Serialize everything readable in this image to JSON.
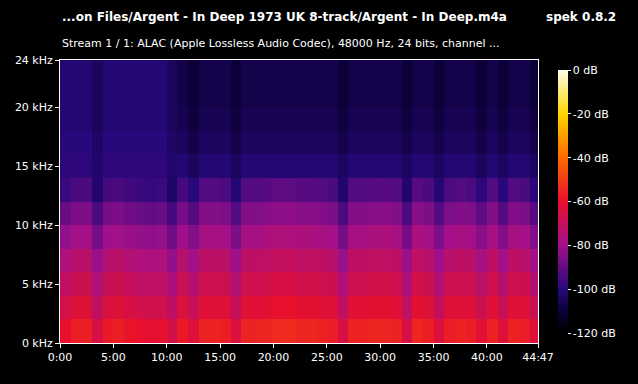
{
  "chart_data": {
    "type": "heatmap",
    "title": "...on Files/Argent - In Deep 1973 UK 8-track/Argent - In Deep.m4a",
    "subtitle": "Stream 1 / 1: ALAC (Apple Lossless Audio Codec), 48000 Hz, 24 bits, channel ...",
    "annotations": [
      {
        "text": "spek 0.8.2"
      }
    ],
    "grid": false,
    "x_edges": [
      0,
      1,
      2,
      3,
      4,
      5,
      6,
      7,
      8,
      9,
      10,
      11,
      12,
      13,
      14,
      15,
      16,
      17,
      18,
      19,
      20,
      21,
      22,
      23,
      24,
      25,
      26,
      27,
      28,
      29,
      30,
      31,
      32,
      33,
      34,
      35,
      36,
      37,
      38,
      39,
      40,
      41,
      42,
      43,
      44,
      44.7833
    ],
    "y_edges": [
      0,
      2,
      4,
      6,
      8,
      10,
      12,
      14,
      16,
      18,
      20,
      22,
      24
    ],
    "cells": [
      [
        -60,
        -57,
        -57,
        -65,
        -58,
        -57,
        -59,
        -60,
        -61,
        -60,
        -66,
        -58,
        -63,
        -56,
        -56,
        -57,
        -64,
        -56,
        -56,
        -55,
        -54,
        -54,
        -55,
        -55,
        -56,
        -57,
        -65,
        -56,
        -56,
        -55,
        -55,
        -56,
        -65,
        -55,
        -57,
        -64,
        -57,
        -56,
        -57,
        -62,
        -56,
        -63,
        -56,
        -57,
        -63
      ],
      [
        -66,
        -63,
        -63,
        -71,
        -64,
        -63,
        -65,
        -66,
        -67,
        -66,
        -72,
        -64,
        -69,
        -62,
        -62,
        -63,
        -70,
        -62,
        -62,
        -61,
        -60,
        -60,
        -61,
        -61,
        -62,
        -63,
        -71,
        -62,
        -62,
        -61,
        -61,
        -62,
        -71,
        -61,
        -63,
        -70,
        -63,
        -62,
        -63,
        -68,
        -62,
        -69,
        -62,
        -63,
        -69
      ],
      [
        -71,
        -68,
        -68,
        -76,
        -69,
        -68,
        -70,
        -71,
        -72,
        -71,
        -77,
        -69,
        -74,
        -67,
        -67,
        -68,
        -75,
        -67,
        -67,
        -66,
        -65,
        -65,
        -66,
        -66,
        -67,
        -68,
        -76,
        -67,
        -67,
        -66,
        -66,
        -67,
        -76,
        -66,
        -68,
        -75,
        -68,
        -67,
        -68,
        -73,
        -67,
        -74,
        -67,
        -68,
        -74
      ],
      [
        -76,
        -73,
        -73,
        -81,
        -74,
        -73,
        -75,
        -76,
        -77,
        -76,
        -82,
        -74,
        -79,
        -72,
        -72,
        -73,
        -80,
        -72,
        -72,
        -71,
        -70,
        -70,
        -71,
        -71,
        -72,
        -73,
        -81,
        -72,
        -72,
        -71,
        -71,
        -72,
        -81,
        -71,
        -73,
        -80,
        -73,
        -72,
        -73,
        -78,
        -72,
        -79,
        -72,
        -73,
        -79
      ],
      [
        -82,
        -79,
        -79,
        -87,
        -80,
        -79,
        -81,
        -82,
        -83,
        -82,
        -88,
        -80,
        -85,
        -78,
        -78,
        -79,
        -86,
        -78,
        -78,
        -77,
        -76,
        -76,
        -77,
        -77,
        -78,
        -79,
        -87,
        -78,
        -78,
        -77,
        -77,
        -78,
        -87,
        -77,
        -79,
        -86,
        -79,
        -78,
        -79,
        -84,
        -78,
        -85,
        -78,
        -79,
        -85
      ],
      [
        -89,
        -86,
        -86,
        -94,
        -87,
        -86,
        -88,
        -89,
        -90,
        -89,
        -95,
        -87,
        -92,
        -85,
        -85,
        -86,
        -93,
        -85,
        -85,
        -84,
        -83,
        -83,
        -84,
        -84,
        -85,
        -86,
        -94,
        -85,
        -85,
        -84,
        -84,
        -85,
        -94,
        -84,
        -86,
        -93,
        -86,
        -85,
        -86,
        -91,
        -85,
        -92,
        -85,
        -86,
        -92
      ],
      [
        -97,
        -94,
        -94,
        -102,
        -95,
        -94,
        -96,
        -97,
        -98,
        -97,
        -103,
        -95,
        -100,
        -93,
        -93,
        -94,
        -101,
        -93,
        -93,
        -92,
        -91,
        -91,
        -92,
        -92,
        -93,
        -94,
        -102,
        -93,
        -93,
        -92,
        -92,
        -93,
        -102,
        -92,
        -94,
        -101,
        -94,
        -93,
        -94,
        -99,
        -93,
        -100,
        -93,
        -94,
        -100
      ],
      [
        -99,
        -99,
        -99,
        -102,
        -99,
        -99,
        -99,
        -99,
        -99,
        -99,
        -102,
        -101,
        -104,
        -101,
        -101,
        -101,
        -104,
        -101,
        -101,
        -101,
        -101,
        -101,
        -101,
        -101,
        -101,
        -101,
        -104,
        -101,
        -101,
        -101,
        -101,
        -101,
        -104,
        -101,
        -101,
        -104,
        -101,
        -101,
        -101,
        -104,
        -101,
        -104,
        -101,
        -101,
        -104
      ],
      [
        -100,
        -100,
        -100,
        -103,
        -100,
        -100,
        -100,
        -100,
        -100,
        -100,
        -103,
        -104,
        -107,
        -104,
        -104,
        -104,
        -107,
        -104,
        -104,
        -104,
        -104,
        -104,
        -104,
        -104,
        -104,
        -104,
        -107,
        -104,
        -104,
        -104,
        -104,
        -104,
        -107,
        -104,
        -104,
        -107,
        -104,
        -104,
        -104,
        -107,
        -104,
        -107,
        -104,
        -104,
        -107
      ],
      [
        -101,
        -101,
        -101,
        -104,
        -101,
        -101,
        -101,
        -101,
        -101,
        -101,
        -104,
        -106,
        -109,
        -106,
        -106,
        -106,
        -109,
        -106,
        -106,
        -106,
        -106,
        -106,
        -106,
        -106,
        -106,
        -106,
        -109,
        -106,
        -106,
        -106,
        -106,
        -106,
        -109,
        -106,
        -106,
        -109,
        -106,
        -106,
        -106,
        -109,
        -106,
        -109,
        -106,
        -106,
        -109
      ],
      [
        -101,
        -101,
        -101,
        -104,
        -101,
        -101,
        -101,
        -101,
        -101,
        -101,
        -104,
        -107,
        -110,
        -107,
        -107,
        -107,
        -110,
        -107,
        -107,
        -107,
        -107,
        -107,
        -107,
        -107,
        -107,
        -107,
        -110,
        -107,
        -107,
        -107,
        -107,
        -107,
        -110,
        -107,
        -107,
        -110,
        -107,
        -107,
        -107,
        -110,
        -107,
        -110,
        -107,
        -107,
        -110
      ],
      [
        -101,
        -101,
        -101,
        -104,
        -101,
        -101,
        -101,
        -101,
        -101,
        -101,
        -104,
        -107,
        -110,
        -107,
        -107,
        -107,
        -110,
        -107,
        -107,
        -107,
        -107,
        -107,
        -107,
        -107,
        -107,
        -107,
        -110,
        -107,
        -107,
        -107,
        -107,
        -107,
        -110,
        -107,
        -107,
        -110,
        -107,
        -107,
        -107,
        -110,
        -107,
        -110,
        -107,
        -107,
        -110
      ]
    ],
    "xlim": [
      0,
      44.7833
    ],
    "xticks": [
      {
        "value": 0,
        "label": "0:00"
      },
      {
        "value": 5,
        "label": "5:00"
      },
      {
        "value": 10,
        "label": "10:00"
      },
      {
        "value": 15,
        "label": "15:00"
      },
      {
        "value": 20,
        "label": "20:00"
      },
      {
        "value": 25,
        "label": "25:00"
      },
      {
        "value": 30,
        "label": "30:00"
      },
      {
        "value": 35,
        "label": "35:00"
      },
      {
        "value": 40,
        "label": "40:00"
      },
      {
        "value": 44.7833,
        "label": "44:47"
      }
    ],
    "ylim": [
      0,
      24
    ],
    "yticks": [
      {
        "value": 0,
        "label": "0 kHz"
      },
      {
        "value": 5,
        "label": "5 kHz"
      },
      {
        "value": 10,
        "label": "10 kHz"
      },
      {
        "value": 15,
        "label": "15 kHz"
      },
      {
        "value": 20,
        "label": "20 kHz"
      },
      {
        "value": 24,
        "label": "24 kHz"
      }
    ],
    "colorbar": {
      "range": [
        -120,
        0
      ],
      "ticks": [
        {
          "value": 0,
          "label": "0 dB"
        },
        {
          "value": -20,
          "label": "-20 dB"
        },
        {
          "value": -40,
          "label": "-40 dB"
        },
        {
          "value": -60,
          "label": "-60 dB"
        },
        {
          "value": -80,
          "label": "-80 dB"
        },
        {
          "value": -100,
          "label": "-100 dB"
        },
        {
          "value": -120,
          "label": "-120 dB"
        }
      ]
    }
  }
}
